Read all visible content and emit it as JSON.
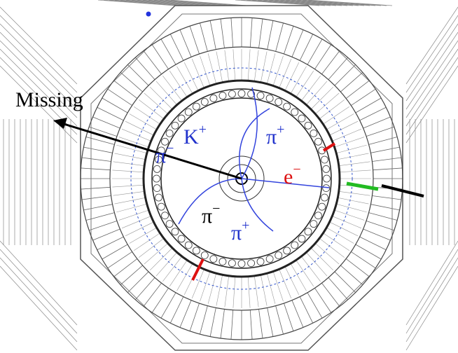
{
  "labels": {
    "missing": "Missing",
    "k_plus": {
      "base": "K",
      "sign": "+"
    },
    "pi_minus_left": {
      "base": "π",
      "sign": "−"
    },
    "pi_plus_top": {
      "base": "π",
      "sign": "+"
    },
    "e_minus": {
      "base": "e",
      "sign": "−"
    },
    "pi_minus_bottom": {
      "base": "π",
      "sign": "−"
    },
    "pi_plus_bottom": {
      "base": "π",
      "sign": "+"
    }
  }
}
